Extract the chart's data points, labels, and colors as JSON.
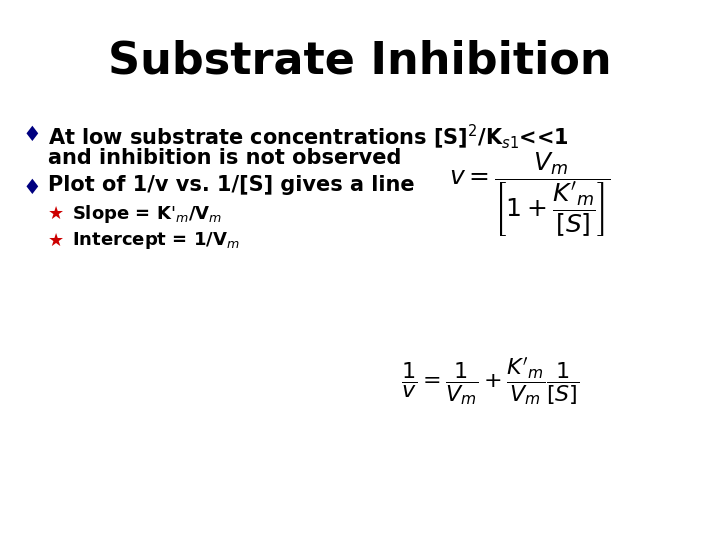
{
  "title": "Substrate Inhibition",
  "title_fontsize": 32,
  "title_fontweight": "bold",
  "background_color": "#ffffff",
  "text_color": "#000000",
  "bullet_color": "#000080",
  "subbullet_color": "#cc0000",
  "bullet_fontsize": 15,
  "sub_fontsize": 13,
  "eq1_fontsize": 18,
  "eq2_fontsize": 16
}
